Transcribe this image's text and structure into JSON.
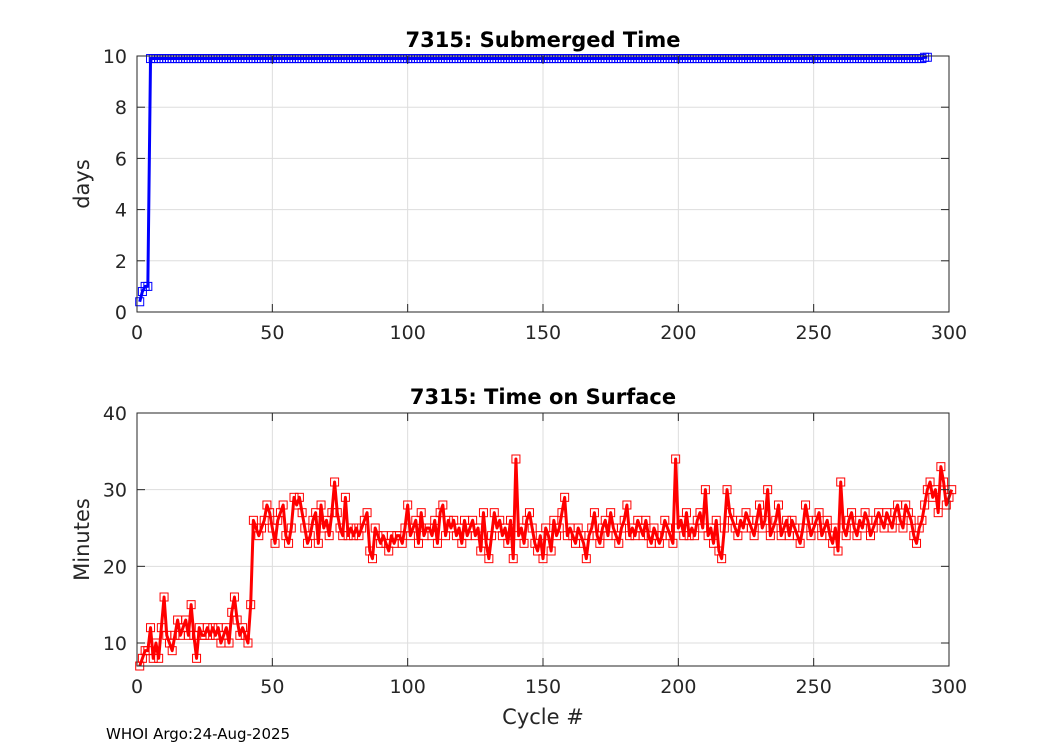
{
  "footer": "WHOI Argo:24-Aug-2025",
  "colors": {
    "submerged": "#0000ff",
    "surface": "#ff0000",
    "grid": "#dddddd",
    "axes": "#262626"
  },
  "chart_data": [
    {
      "type": "line",
      "title": "7315: Submerged Time",
      "xlabel": "",
      "ylabel": "days",
      "xlim": [
        0,
        300
      ],
      "ylim": [
        0,
        10
      ],
      "xticks": [
        0,
        50,
        100,
        150,
        200,
        250,
        300
      ],
      "yticks": [
        0,
        2,
        4,
        6,
        8,
        10
      ],
      "grid": true,
      "marker": "square",
      "series": [
        {
          "color": "#0000ff",
          "x": [
            1,
            2,
            3,
            4,
            5,
            6
          ],
          "y": [
            0.4,
            0.8,
            1.0,
            1.0,
            9.9,
            9.9
          ],
          "constant_from_cycle": 6,
          "constant_to_cycle": 290,
          "constant_value": 9.9,
          "end": [
            [
              291,
              9.95
            ],
            [
              292,
              9.95
            ]
          ]
        }
      ]
    },
    {
      "type": "line",
      "title": "7315: Time on Surface",
      "xlabel": "Cycle #",
      "ylabel": "Minutes",
      "xlim": [
        0,
        300
      ],
      "ylim": [
        7,
        40
      ],
      "xticks": [
        0,
        50,
        100,
        150,
        200,
        250,
        300
      ],
      "yticks": [
        10,
        20,
        30,
        40
      ],
      "grid": true,
      "marker": "square",
      "series": [
        {
          "color": "#ff0000",
          "x_start": 1,
          "y": [
            7,
            8,
            9,
            9,
            12,
            8,
            10,
            8,
            12,
            16,
            11,
            10,
            9,
            11,
            13,
            11,
            12,
            13,
            11,
            15,
            11,
            8,
            12,
            11,
            11,
            12,
            11,
            12,
            11,
            12,
            10,
            11,
            12,
            10,
            14,
            16,
            13,
            11,
            12,
            11,
            10,
            15,
            26,
            25,
            24,
            25,
            26,
            28,
            27,
            25,
            23,
            26,
            27,
            28,
            24,
            23,
            25,
            29,
            28,
            29,
            27,
            25,
            23,
            24,
            26,
            27,
            23,
            28,
            25,
            26,
            24,
            27,
            31,
            27,
            25,
            24,
            29,
            24,
            25,
            24,
            25,
            24,
            25,
            26,
            27,
            22,
            21,
            25,
            24,
            23,
            24,
            23,
            22,
            24,
            23,
            24,
            24,
            23,
            25,
            28,
            24,
            25,
            26,
            23,
            27,
            24,
            25,
            25,
            24,
            26,
            23,
            27,
            28,
            24,
            26,
            25,
            26,
            24,
            25,
            23,
            26,
            24,
            25,
            26,
            24,
            25,
            22,
            27,
            23,
            21,
            24,
            27,
            25,
            26,
            24,
            25,
            23,
            26,
            21,
            34,
            24,
            25,
            23,
            26,
            27,
            25,
            23,
            22,
            24,
            21,
            25,
            24,
            22,
            26,
            24,
            25,
            27,
            29,
            24,
            25,
            24,
            23,
            25,
            24,
            23,
            21,
            24,
            25,
            27,
            24,
            23,
            25,
            26,
            24,
            27,
            25,
            24,
            23,
            25,
            26,
            28,
            24,
            25,
            24,
            26,
            25,
            24,
            26,
            24,
            23,
            25,
            24,
            23,
            24,
            26,
            25,
            24,
            23,
            34,
            25,
            26,
            24,
            27,
            24,
            25,
            24,
            26,
            27,
            25,
            30,
            24,
            25,
            23,
            26,
            22,
            21,
            25,
            30,
            27,
            26,
            25,
            24,
            26,
            25,
            27,
            26,
            25,
            24,
            26,
            28,
            25,
            26,
            30,
            24,
            25,
            26,
            28,
            24,
            25,
            26,
            24,
            26,
            25,
            24,
            23,
            25,
            28,
            26,
            24,
            25,
            26,
            27,
            24,
            25,
            26,
            24,
            23,
            25,
            22,
            31,
            25,
            24,
            26,
            27,
            25,
            24,
            26,
            25,
            27,
            26,
            24,
            25,
            26,
            27,
            26,
            25,
            27,
            26,
            25,
            27,
            28,
            26,
            25,
            28,
            27,
            26,
            24,
            23,
            25,
            26,
            28,
            30,
            31,
            29,
            30,
            27,
            33,
            31,
            28,
            29,
            30
          ]
        }
      ]
    }
  ]
}
